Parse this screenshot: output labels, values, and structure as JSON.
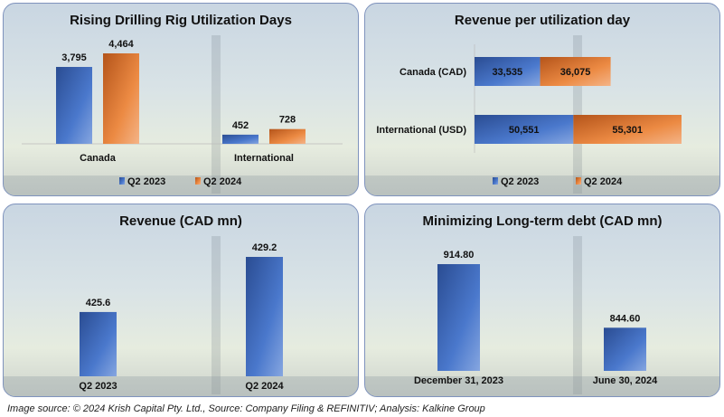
{
  "colors": {
    "q2_2023": "#3d68b8",
    "q2_2024": "#e0782e",
    "blue": "#2f56a8"
  },
  "chart_data": [
    {
      "type": "bar",
      "title": "Rising Drilling Rig Utilization Days",
      "categories": [
        "Canada",
        "International"
      ],
      "series": [
        {
          "name": "Q2 2023",
          "values": [
            3795,
            452
          ],
          "labels": [
            "3,795",
            "452"
          ]
        },
        {
          "name": "Q2 2024",
          "values": [
            4464,
            728
          ],
          "labels": [
            "4,464",
            "728"
          ]
        }
      ],
      "ylim": [
        0,
        5000
      ],
      "legend": "bottom"
    },
    {
      "type": "bar",
      "orientation": "horizontal",
      "stacked": true,
      "title": "Revenue per utilization day",
      "categories": [
        "Canada (CAD)",
        "International (USD)"
      ],
      "series": [
        {
          "name": "Q2 2023",
          "values": [
            33535,
            50551
          ],
          "labels": [
            "33,535",
            "50,551"
          ]
        },
        {
          "name": "Q2 2024",
          "values": [
            36075,
            55301
          ],
          "labels": [
            "36,075",
            "55,301"
          ]
        }
      ],
      "xlim": [
        0,
        110000
      ],
      "legend": "bottom"
    },
    {
      "type": "bar",
      "title": "Revenue (CAD mn)",
      "categories": [
        "Q2 2023",
        "Q2 2024"
      ],
      "values": [
        425.6,
        429.2
      ],
      "labels": [
        "425.6",
        "429.2"
      ],
      "ylim": [
        421.4,
        430.5
      ]
    },
    {
      "type": "bar",
      "title": "Minimizing Long-term debt (CAD mn)",
      "categories": [
        "December 31, 2023",
        "June 30, 2024"
      ],
      "values": [
        914.8,
        844.6
      ],
      "labels": [
        "914.80",
        "844.60"
      ],
      "ylim": [
        797,
        930
      ]
    }
  ],
  "caption": "Image source: © 2024 Krish Capital Pty. Ltd., Source: Company Filing & REFINITIV; Analysis: Kalkine Group"
}
